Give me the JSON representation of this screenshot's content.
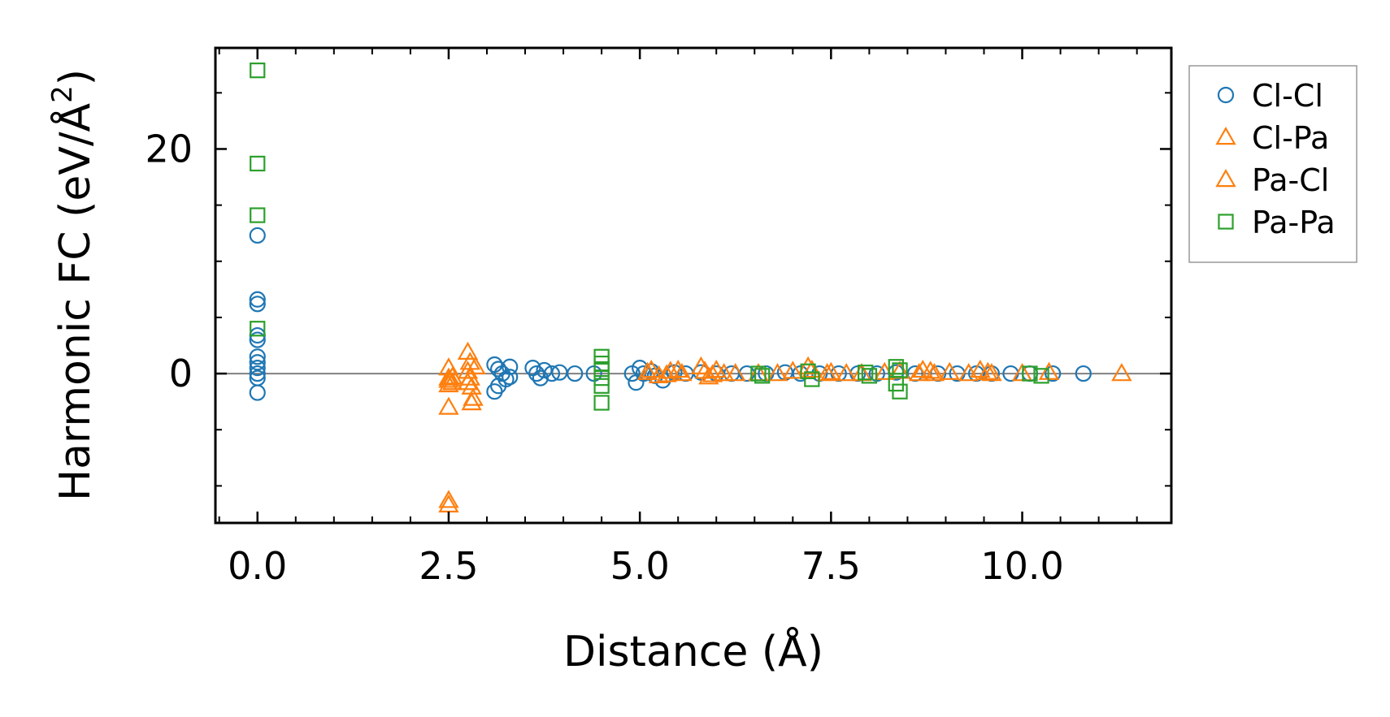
{
  "chart_data": {
    "type": "scatter",
    "xlabel": "Distance (Å)",
    "ylabel_main": "Harmonic FC (eV/Å",
    "ylabel_sup": "2",
    "ylabel_close": ")",
    "xlim": [
      -0.55,
      11.95
    ],
    "ylim": [
      -13.3,
      29.0
    ],
    "xticks": [
      0.0,
      2.5,
      5.0,
      7.5,
      10.0
    ],
    "xtick_labels": [
      "0.0",
      "2.5",
      "5.0",
      "7.5",
      "10.0"
    ],
    "yticks": [
      0,
      20
    ],
    "ytick_labels": [
      "0",
      "20"
    ],
    "x_minor_step": 0.5,
    "y_minor_step": 5,
    "zero_line": true,
    "legend_position": "outside-right-top",
    "series": [
      {
        "name": "Cl-Cl",
        "marker": "circle",
        "color": "#1f77b4",
        "points": [
          [
            0,
            12.3
          ],
          [
            0,
            6.6
          ],
          [
            0,
            6.2
          ],
          [
            0,
            3.4
          ],
          [
            0,
            3.0
          ],
          [
            0,
            1.5
          ],
          [
            0,
            1.0
          ],
          [
            0,
            0.5
          ],
          [
            0,
            0.0
          ],
          [
            0,
            -0.4
          ],
          [
            0,
            -1.7
          ],
          [
            3.1,
            0.8
          ],
          [
            3.15,
            0.4
          ],
          [
            3.2,
            0.0
          ],
          [
            3.25,
            -0.5
          ],
          [
            3.1,
            -1.6
          ],
          [
            3.15,
            -1.1
          ],
          [
            3.3,
            0.6
          ],
          [
            3.3,
            -0.3
          ],
          [
            3.6,
            0.5
          ],
          [
            3.65,
            0.0
          ],
          [
            3.7,
            -0.4
          ],
          [
            3.75,
            0.3
          ],
          [
            3.85,
            0.0
          ],
          [
            3.95,
            0.1
          ],
          [
            4.15,
            0.0
          ],
          [
            4.4,
            0.0
          ],
          [
            4.9,
            0.0
          ],
          [
            4.95,
            -0.8
          ],
          [
            5.0,
            0.5
          ],
          [
            5.05,
            0.0
          ],
          [
            5.15,
            0.2
          ],
          [
            5.2,
            -0.2
          ],
          [
            5.3,
            -0.6
          ],
          [
            5.45,
            0.1
          ],
          [
            5.6,
            0.0
          ],
          [
            5.8,
            0.1
          ],
          [
            6.0,
            0.0
          ],
          [
            6.2,
            0.0
          ],
          [
            6.4,
            0.0
          ],
          [
            6.65,
            0.0
          ],
          [
            6.9,
            0.1
          ],
          [
            7.1,
            0.0
          ],
          [
            7.35,
            0.0
          ],
          [
            7.6,
            0.0
          ],
          [
            7.85,
            0.0
          ],
          [
            8.1,
            0.0
          ],
          [
            8.35,
            0.1
          ],
          [
            8.6,
            0.0
          ],
          [
            8.9,
            0.0
          ],
          [
            9.15,
            0.0
          ],
          [
            9.4,
            0.0
          ],
          [
            9.6,
            0.0
          ],
          [
            9.85,
            0.0
          ],
          [
            10.1,
            0.0
          ],
          [
            10.4,
            0.0
          ],
          [
            10.8,
            0.0
          ]
        ]
      },
      {
        "name": "Cl-Pa",
        "marker": "triangle",
        "color": "#ff7f0e",
        "points": [
          [
            2.5,
            0.5
          ],
          [
            2.5,
            -0.6
          ],
          [
            2.5,
            -1.0
          ],
          [
            2.5,
            -3.0
          ],
          [
            2.5,
            -11.7
          ],
          [
            2.55,
            -0.3
          ],
          [
            2.75,
            1.9
          ],
          [
            2.75,
            0.2
          ],
          [
            2.75,
            -0.8
          ],
          [
            2.8,
            -2.6
          ],
          [
            2.8,
            -1.2
          ],
          [
            2.85,
            0.6
          ],
          [
            5.1,
            0.1
          ],
          [
            5.25,
            -0.2
          ],
          [
            5.4,
            0.2
          ],
          [
            5.55,
            0.0
          ],
          [
            5.8,
            0.6
          ],
          [
            5.9,
            -0.3
          ],
          [
            6.0,
            0.3
          ],
          [
            6.25,
            0.0
          ],
          [
            6.8,
            0.0
          ],
          [
            7.0,
            0.2
          ],
          [
            7.2,
            0.6
          ],
          [
            7.45,
            0.0
          ],
          [
            7.7,
            0.0
          ],
          [
            8.2,
            0.1
          ],
          [
            8.7,
            0.3
          ],
          [
            8.85,
            0.0
          ],
          [
            9.05,
            0.1
          ],
          [
            9.45,
            0.3
          ],
          [
            9.6,
            0.0
          ],
          [
            10.35,
            0.1
          ],
          [
            11.3,
            0.0
          ]
        ]
      },
      {
        "name": "Pa-Cl",
        "marker": "triangle",
        "color": "#ff7f0e",
        "points": [
          [
            2.5,
            -0.4
          ],
          [
            2.55,
            -0.8
          ],
          [
            2.5,
            -11.3
          ],
          [
            2.78,
            -0.4
          ],
          [
            2.78,
            1.0
          ],
          [
            2.82,
            -2.2
          ],
          [
            5.15,
            0.3
          ],
          [
            5.35,
            -0.1
          ],
          [
            5.5,
            0.3
          ],
          [
            5.85,
            0.2
          ],
          [
            5.95,
            -0.1
          ],
          [
            6.1,
            0.0
          ],
          [
            6.55,
            0.0
          ],
          [
            7.25,
            0.3
          ],
          [
            7.5,
            0.1
          ],
          [
            7.9,
            0.0
          ],
          [
            8.4,
            0.2
          ],
          [
            8.65,
            0.0
          ],
          [
            8.8,
            0.2
          ],
          [
            9.3,
            0.0
          ],
          [
            9.55,
            0.1
          ],
          [
            10.0,
            0.0
          ]
        ]
      },
      {
        "name": "Pa-Pa",
        "marker": "square",
        "color": "#2ca02c",
        "points": [
          [
            0,
            27.0
          ],
          [
            0,
            18.7
          ],
          [
            0,
            14.1
          ],
          [
            0,
            4.0
          ],
          [
            4.5,
            1.5
          ],
          [
            4.5,
            0.9
          ],
          [
            4.5,
            0.4
          ],
          [
            4.5,
            -0.4
          ],
          [
            4.5,
            -1.1
          ],
          [
            4.5,
            -2.6
          ],
          [
            6.55,
            0.0
          ],
          [
            6.6,
            -0.2
          ],
          [
            7.2,
            0.2
          ],
          [
            7.25,
            -0.5
          ],
          [
            7.95,
            0.1
          ],
          [
            8.0,
            -0.2
          ],
          [
            8.35,
            0.6
          ],
          [
            8.35,
            -0.9
          ],
          [
            8.4,
            0.3
          ],
          [
            8.4,
            -1.6
          ],
          [
            10.1,
            0.0
          ],
          [
            10.25,
            -0.2
          ]
        ]
      }
    ]
  }
}
